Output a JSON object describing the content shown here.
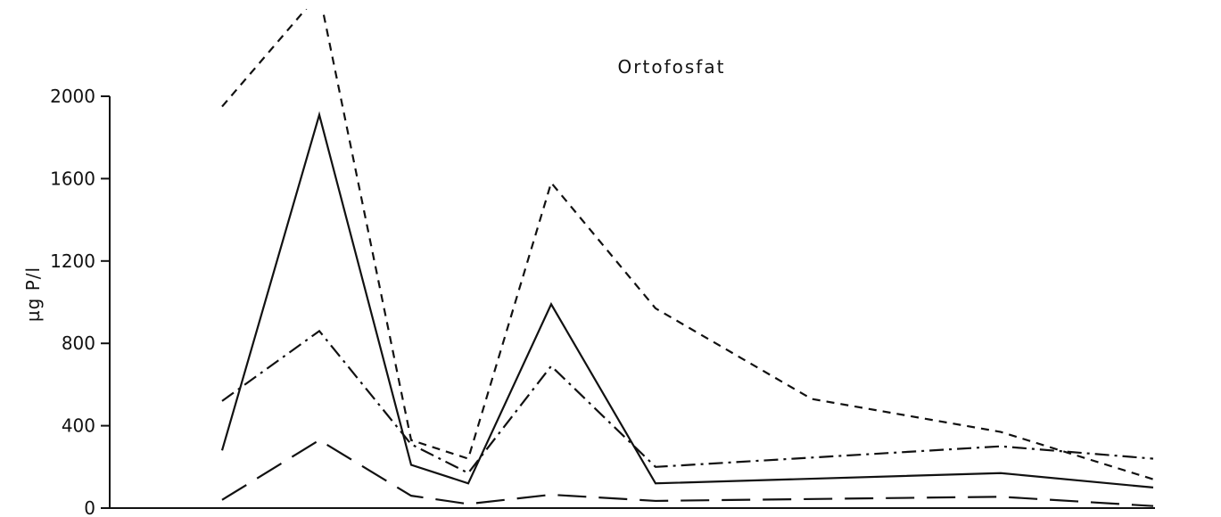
{
  "chart_data": {
    "type": "line",
    "title": "Ortofosfat",
    "ylabel": "µg P/l",
    "xlabel": "",
    "ylim": [
      0,
      2000
    ],
    "yticks": [
      0,
      400,
      800,
      1200,
      1600,
      2000
    ],
    "ytick_labels": [
      "0",
      "400",
      "800",
      "1200",
      "1600",
      "2000"
    ],
    "x_positions": [
      1,
      2,
      3,
      4,
      5,
      6,
      8,
      10,
      11
    ],
    "grid": false,
    "series": [
      {
        "style": "short-dash",
        "values": [
          1950,
          2500,
          330,
          240,
          1580,
          970,
          530,
          370,
          140
        ],
        "note_clipped_above": true
      },
      {
        "style": "solid",
        "values": [
          280,
          1910,
          210,
          120,
          990,
          120,
          null,
          170,
          100
        ]
      },
      {
        "style": "dash-dot",
        "values": [
          520,
          860,
          310,
          170,
          690,
          200,
          null,
          300,
          240
        ]
      },
      {
        "style": "long-dash",
        "values": [
          40,
          330,
          60,
          20,
          65,
          35,
          null,
          55,
          10
        ]
      }
    ]
  }
}
